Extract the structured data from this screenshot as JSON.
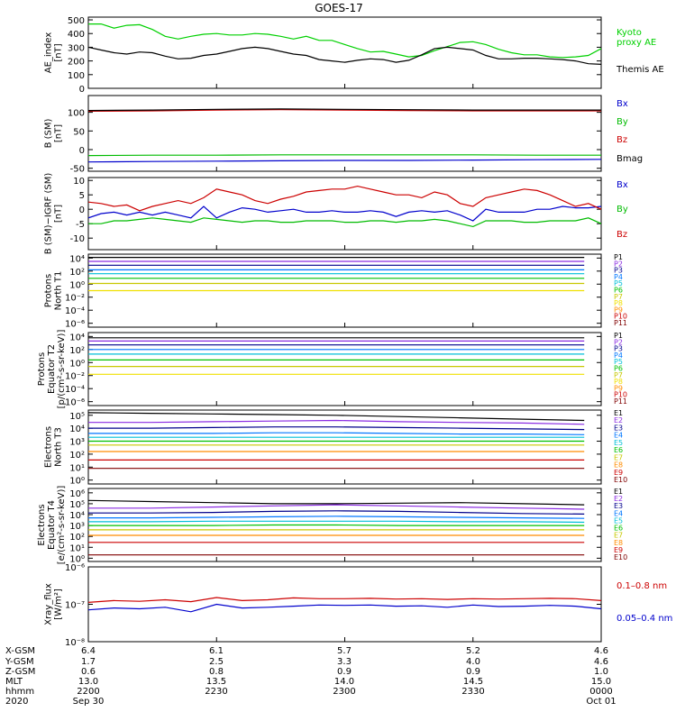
{
  "title": "GOES-17",
  "chart_data": [
    {
      "type": "line",
      "ylabel": [
        "AE_index",
        "[nT]"
      ],
      "yticks": [
        "0",
        "100",
        "200",
        "300",
        "400",
        "500"
      ],
      "ylim": [
        0,
        520
      ],
      "x": [
        0,
        5,
        10,
        15,
        20,
        25,
        30,
        35,
        40,
        45,
        50,
        55,
        60,
        65,
        70,
        75,
        80,
        85,
        90,
        95,
        100,
        105,
        110,
        115,
        120,
        125,
        130,
        135,
        140,
        145,
        150,
        155,
        160,
        165,
        170,
        175,
        180,
        185,
        190,
        195,
        200
      ],
      "series": [
        {
          "name": "Kyoto proxy AE",
          "color": "#00d000",
          "values": [
            470,
            470,
            440,
            460,
            465,
            430,
            380,
            360,
            380,
            395,
            400,
            390,
            390,
            400,
            395,
            380,
            360,
            380,
            350,
            350,
            320,
            290,
            265,
            270,
            250,
            230,
            240,
            275,
            305,
            335,
            340,
            320,
            285,
            260,
            245,
            245,
            230,
            225,
            230,
            240,
            290
          ]
        },
        {
          "name": "Themis AE",
          "color": "#000000",
          "values": [
            300,
            280,
            260,
            250,
            265,
            260,
            235,
            215,
            220,
            240,
            250,
            270,
            290,
            300,
            290,
            270,
            250,
            240,
            210,
            200,
            190,
            205,
            215,
            210,
            190,
            205,
            245,
            290,
            300,
            290,
            280,
            240,
            215,
            215,
            220,
            220,
            215,
            210,
            200,
            180,
            175
          ]
        }
      ]
    },
    {
      "type": "line",
      "ylabel": [
        "B (SM)",
        "[nT]"
      ],
      "yticks": [
        "-50",
        "0",
        "50",
        "100"
      ],
      "ylim": [
        -58,
        145
      ],
      "x": [
        0,
        25,
        50,
        75,
        100,
        125,
        150,
        175,
        200
      ],
      "series": [
        {
          "name": "Bx",
          "color": "#0000cc",
          "values": [
            -33,
            -32,
            -31,
            -30,
            -29,
            -29,
            -28,
            -27,
            -26
          ]
        },
        {
          "name": "By",
          "color": "#00bb00",
          "values": [
            -16,
            -15,
            -15,
            -14,
            -14,
            -14,
            -14,
            -15,
            -15
          ]
        },
        {
          "name": "Bz",
          "color": "#cc0000",
          "values": [
            103,
            104,
            106,
            107,
            106,
            105,
            104,
            104,
            104
          ]
        },
        {
          "name": "Bmag",
          "color": "#000000",
          "values": [
            105,
            106,
            108,
            109,
            108,
            107,
            106,
            106,
            106
          ]
        }
      ]
    },
    {
      "type": "line",
      "ylabel": [
        "B (SM)−IGRF (SM)",
        "[nT]"
      ],
      "yticks": [
        "-10",
        "-5",
        "0",
        "5",
        "10"
      ],
      "ylim": [
        -14,
        11
      ],
      "x": [
        0,
        5,
        10,
        15,
        20,
        25,
        30,
        35,
        40,
        45,
        50,
        55,
        60,
        65,
        70,
        75,
        80,
        85,
        90,
        95,
        100,
        105,
        110,
        115,
        120,
        125,
        130,
        135,
        140,
        145,
        150,
        155,
        160,
        165,
        170,
        175,
        180,
        185,
        190,
        195,
        200
      ],
      "series": [
        {
          "name": "Bx",
          "color": "#0000cc",
          "values": [
            -3,
            -1.5,
            -1,
            -2,
            -1,
            -2,
            -1,
            -2,
            -3,
            1,
            -3,
            -1,
            0.5,
            0,
            -1,
            -0.5,
            0,
            -1,
            -1,
            -0.5,
            -1,
            -1,
            -0.5,
            -1,
            -2.5,
            -1,
            -0.5,
            -1,
            -0.5,
            -2,
            -4,
            0,
            -1,
            -1,
            -1,
            0,
            0,
            1,
            0.5,
            0.5,
            1
          ]
        },
        {
          "name": "By",
          "color": "#00bb00",
          "values": [
            -5,
            -5,
            -4,
            -4,
            -3.5,
            -3,
            -3.5,
            -4,
            -4.5,
            -3,
            -3.5,
            -4,
            -4.5,
            -4,
            -4,
            -4.5,
            -4.5,
            -4,
            -4,
            -4,
            -4.5,
            -4.5,
            -4,
            -4,
            -4.5,
            -4,
            -4,
            -3.5,
            -4,
            -5,
            -6,
            -4,
            -4,
            -4,
            -4.5,
            -4.5,
            -4,
            -4,
            -4,
            -3,
            -5
          ]
        },
        {
          "name": "Bz",
          "color": "#cc0000",
          "values": [
            2.5,
            2,
            1,
            1.5,
            -0.5,
            1,
            2,
            3,
            2,
            4,
            7,
            6,
            5,
            3,
            2,
            3.5,
            4.5,
            6,
            6.5,
            7,
            7,
            8,
            7,
            6,
            5,
            5,
            4,
            6,
            5,
            2,
            1,
            4,
            5,
            6,
            7,
            6.5,
            5,
            3,
            1,
            2,
            0
          ]
        }
      ]
    },
    {
      "type": "line",
      "log": true,
      "ylabel": [
        "Protons",
        "North T1"
      ],
      "yticks": [
        "10⁻⁶",
        "10⁻⁴",
        "10⁻²",
        "10⁰",
        "10²",
        "10⁴"
      ],
      "ylim": [
        -6.6,
        4.6
      ],
      "series": [
        {
          "name": "P1",
          "color": "#000000",
          "values": [
            4.1,
            4.1
          ]
        },
        {
          "name": "P2",
          "color": "#8a2be2",
          "values": [
            3.5,
            3.5
          ]
        },
        {
          "name": "P3",
          "color": "#00008b",
          "values": [
            2.9,
            2.9
          ]
        },
        {
          "name": "P4",
          "color": "#0077ff",
          "values": [
            2.2,
            2.2
          ]
        },
        {
          "name": "P5",
          "color": "#00bfd8",
          "values": [
            1.6,
            1.6
          ]
        },
        {
          "name": "P6",
          "color": "#00c000",
          "values": [
            0.9,
            0.9
          ]
        },
        {
          "name": "P7",
          "color": "#c8c800",
          "values": [
            0.1,
            0.1
          ]
        },
        {
          "name": "P8",
          "color": "#f0e000",
          "values": [
            -1.0,
            -1.0
          ]
        }
      ],
      "legend": [
        "P1",
        "P2",
        "P3",
        "P4",
        "P5",
        "P6",
        "P7",
        "P8",
        "P9",
        "P10",
        "P11"
      ]
    },
    {
      "type": "line",
      "log": true,
      "ylabel": [
        "Protons",
        "Equator T2",
        "[p/(cm²-s-sr-keV)]"
      ],
      "yticks": [
        "10⁻⁶",
        "10⁻⁴",
        "10⁻²",
        "10⁰",
        "10²",
        "10⁴"
      ],
      "ylim": [
        -6.6,
        4.6
      ],
      "series": [
        {
          "name": "P1",
          "color": "#000000",
          "values": [
            3.8,
            3.8
          ]
        },
        {
          "name": "P2",
          "color": "#8a2be2",
          "values": [
            3.3,
            3.3
          ]
        },
        {
          "name": "P3",
          "color": "#00008b",
          "values": [
            2.7,
            2.7
          ]
        },
        {
          "name": "P4",
          "color": "#0077ff",
          "values": [
            2.0,
            2.0
          ]
        },
        {
          "name": "P5",
          "color": "#00bfd8",
          "values": [
            1.3,
            1.3
          ]
        },
        {
          "name": "P6",
          "color": "#00c000",
          "values": [
            0.4,
            0.4
          ]
        },
        {
          "name": "P7",
          "color": "#c8c800",
          "values": [
            -0.6,
            -0.6
          ]
        },
        {
          "name": "P8",
          "color": "#f0e000",
          "values": [
            -1.8,
            -1.8
          ]
        }
      ],
      "legend": [
        "P1",
        "P2",
        "P3",
        "P4",
        "P5",
        "P6",
        "P7",
        "P8",
        "P9",
        "P10",
        "P11"
      ]
    },
    {
      "type": "line",
      "log": true,
      "ylabel": [
        "Electrons",
        "North T3"
      ],
      "yticks": [
        "10⁰",
        "10¹",
        "10²",
        "10³",
        "10⁴",
        "10⁵"
      ],
      "ylim": [
        -0.3,
        5.4
      ],
      "series": [
        {
          "name": "E1",
          "color": "#000000",
          "values": [
            5.2,
            5.15,
            5.1,
            5.05,
            5.0,
            4.9,
            4.8,
            4.7,
            4.6
          ]
        },
        {
          "name": "E2",
          "color": "#8a2be2",
          "values": [
            4.45,
            4.45,
            4.5,
            4.55,
            4.6,
            4.5,
            4.45,
            4.4,
            4.3
          ]
        },
        {
          "name": "E3",
          "color": "#00008b",
          "values": [
            4.0,
            4.0,
            4.05,
            4.1,
            4.1,
            4.05,
            4.0,
            3.95,
            3.9
          ]
        },
        {
          "name": "E4",
          "color": "#0077ff",
          "values": [
            3.6,
            3.6,
            3.6,
            3.65,
            3.65,
            3.6,
            3.55,
            3.55,
            3.5
          ]
        },
        {
          "name": "E5",
          "color": "#00bfd8",
          "values": [
            3.3,
            3.3,
            3.3,
            3.3,
            3.3,
            3.3,
            3.3,
            3.3,
            3.3
          ]
        },
        {
          "name": "E6",
          "color": "#00c000",
          "values": [
            3.0,
            3.0,
            3.0,
            3.0,
            3.0,
            3.0,
            3.0,
            3.0,
            3.0
          ]
        },
        {
          "name": "E7",
          "color": "#c8c800",
          "values": [
            2.7,
            2.7,
            2.7,
            2.7,
            2.7,
            2.7,
            2.7,
            2.7,
            2.7
          ]
        },
        {
          "name": "E8",
          "color": "#ff8c00",
          "values": [
            2.2,
            2.2,
            2.2,
            2.2,
            2.2,
            2.2,
            2.2,
            2.2,
            2.2
          ]
        },
        {
          "name": "E9",
          "color": "#cc0000",
          "values": [
            1.55,
            1.55,
            1.55,
            1.55,
            1.55,
            1.55,
            1.55,
            1.55,
            1.55
          ]
        },
        {
          "name": "E10",
          "color": "#800000",
          "values": [
            0.9,
            0.9,
            0.9,
            0.9,
            0.9,
            0.9,
            0.9,
            0.9,
            0.9
          ]
        }
      ]
    },
    {
      "type": "line",
      "log": true,
      "ylabel": [
        "Electrons",
        "Equator T4",
        "[e/(cm²-s-sr-keV)]"
      ],
      "yticks": [
        "10⁰",
        "10¹",
        "10²",
        "10³",
        "10⁴",
        "10⁵",
        "10⁶"
      ],
      "ylim": [
        -0.3,
        6.4
      ],
      "series": [
        {
          "name": "E1",
          "color": "#000000",
          "values": [
            5.3,
            5.2,
            5.1,
            5.0,
            5.0,
            5.05,
            5.1,
            5.0,
            4.9
          ]
        },
        {
          "name": "E2",
          "color": "#8a2be2",
          "values": [
            4.6,
            4.6,
            4.7,
            4.8,
            4.9,
            4.8,
            4.7,
            4.6,
            4.5
          ]
        },
        {
          "name": "E3",
          "color": "#00008b",
          "values": [
            4.15,
            4.15,
            4.2,
            4.3,
            4.35,
            4.3,
            4.2,
            4.1,
            4.05
          ]
        },
        {
          "name": "E4",
          "color": "#0077ff",
          "values": [
            3.7,
            3.7,
            3.75,
            3.8,
            3.85,
            3.8,
            3.75,
            3.7,
            3.65
          ]
        },
        {
          "name": "E5",
          "color": "#00bfd8",
          "values": [
            3.35,
            3.35,
            3.4,
            3.4,
            3.4,
            3.4,
            3.35,
            3.35,
            3.3
          ]
        },
        {
          "name": "E6",
          "color": "#00c000",
          "values": [
            3.0,
            3.0,
            3.0,
            3.05,
            3.05,
            3.0,
            3.0,
            3.0,
            3.0
          ]
        },
        {
          "name": "E7",
          "color": "#c8c800",
          "values": [
            2.6,
            2.6,
            2.6,
            2.6,
            2.6,
            2.6,
            2.6,
            2.6,
            2.6
          ]
        },
        {
          "name": "E8",
          "color": "#ff8c00",
          "values": [
            2.1,
            2.1,
            2.1,
            2.1,
            2.1,
            2.1,
            2.1,
            2.1,
            2.1
          ]
        },
        {
          "name": "E9",
          "color": "#cc0000",
          "values": [
            1.45,
            1.45,
            1.45,
            1.45,
            1.45,
            1.45,
            1.45,
            1.45,
            1.45
          ]
        },
        {
          "name": "E10",
          "color": "#800000",
          "values": [
            0.3,
            0.3,
            0.3,
            0.3,
            0.3,
            0.3,
            0.3,
            0.3,
            0.3
          ]
        }
      ]
    },
    {
      "type": "line",
      "log": true,
      "ylabel": [
        "Xray_flux",
        "[W/m²]"
      ],
      "yticks": [
        "10⁻⁸",
        "10⁻⁷",
        "10⁻⁶"
      ],
      "ylim": [
        -8.0,
        -6.0
      ],
      "x": [
        0,
        10,
        20,
        30,
        40,
        50,
        60,
        70,
        80,
        90,
        100,
        110,
        120,
        130,
        140,
        150,
        160,
        170,
        180,
        190,
        200
      ],
      "series": [
        {
          "name": "0.1–0.8 nm",
          "color": "#cc0000",
          "values": [
            -6.95,
            -6.9,
            -6.92,
            -6.88,
            -6.93,
            -6.82,
            -6.9,
            -6.88,
            -6.83,
            -6.85,
            -6.85,
            -6.84,
            -6.86,
            -6.85,
            -6.87,
            -6.85,
            -6.86,
            -6.85,
            -6.84,
            -6.85,
            -6.9
          ]
        },
        {
          "name": "0.05–0.4 nm",
          "color": "#0000cc",
          "values": [
            -7.15,
            -7.1,
            -7.12,
            -7.08,
            -7.2,
            -7.0,
            -7.1,
            -7.08,
            -7.05,
            -7.02,
            -7.03,
            -7.02,
            -7.05,
            -7.04,
            -7.08,
            -7.02,
            -7.06,
            -7.05,
            -7.03,
            -7.05,
            -7.12
          ]
        }
      ]
    }
  ],
  "legends": {
    "ae": [
      {
        "text": "Kyoto",
        "color": "#00d000"
      },
      {
        "text": "proxy AE",
        "color": "#00d000"
      },
      {
        "text": "Themis AE",
        "color": "#000000"
      }
    ],
    "b": [
      {
        "text": "Bx",
        "color": "#0000cc"
      },
      {
        "text": "By",
        "color": "#00bb00"
      },
      {
        "text": "Bz",
        "color": "#cc0000"
      },
      {
        "text": "Bmag",
        "color": "#000000"
      }
    ],
    "db": [
      {
        "text": "Bx",
        "color": "#0000cc"
      },
      {
        "text": "By",
        "color": "#00bb00"
      },
      {
        "text": "Bz",
        "color": "#cc0000"
      }
    ],
    "xray": [
      {
        "text": "0.1–0.8 nm",
        "color": "#cc0000"
      },
      {
        "text": "0.05–0.4 nm",
        "color": "#0000cc"
      }
    ],
    "proton_colors": [
      "#000000",
      "#8a2be2",
      "#00008b",
      "#0077ff",
      "#00bfd8",
      "#00c000",
      "#c8c800",
      "#f0e000",
      "#ff8c00",
      "#cc0000",
      "#800000"
    ],
    "electron_colors": [
      "#000000",
      "#8a2be2",
      "#00008b",
      "#0077ff",
      "#00bfd8",
      "#00c000",
      "#c8c800",
      "#ff8c00",
      "#cc0000",
      "#800000"
    ]
  },
  "footer": {
    "labels": [
      "X-GSM",
      "Y-GSM",
      "Z-GSM",
      "MLT",
      "hhmm",
      "2020"
    ],
    "columns": [
      [
        "6.4",
        "1.7",
        "0.6",
        "13.0",
        "2200",
        "Sep 30"
      ],
      [
        "6.1",
        "2.5",
        "0.8",
        "13.5",
        "2230",
        ""
      ],
      [
        "5.7",
        "3.3",
        "0.9",
        "14.0",
        "2300",
        ""
      ],
      [
        "5.2",
        "4.0",
        "0.9",
        "14.5",
        "2330",
        ""
      ],
      [
        "4.6",
        "4.6",
        "1.0",
        "15.0",
        "0000",
        "Oct 01"
      ]
    ]
  }
}
